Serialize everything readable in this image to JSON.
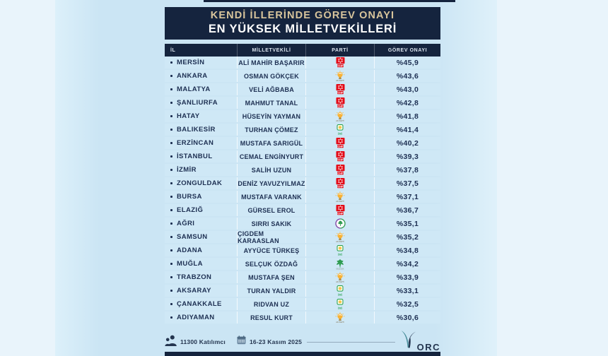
{
  "title": {
    "line1": "KENDİ İLLERİNDE GÖREV ONAYI",
    "line2": "EN YÜKSEK MİLLETVEKİLLERİ"
  },
  "colors": {
    "navy": "#15243e",
    "title_gold": "#d8c59c",
    "row_bg": "#cfe8f6",
    "page_bg": "#e9f4fb",
    "band_bg": "#cbe5f4",
    "text": "#1d2f52",
    "chp_red": "#e30a17",
    "akp_amber": "#f9b234",
    "iyi_green": "#1e9e49",
    "dem_purple": "#7b3fa0",
    "dem_green": "#2e9b4f",
    "orc_teal": "#4b8f9c"
  },
  "footer": {
    "participants": "11300 Katılımcı",
    "date_range": "16-23 Kasım 2025",
    "brand": "ORC"
  },
  "chart_data": {
    "type": "table",
    "title": "KENDİ İLLERİNDE GÖREV ONAYI EN YÜKSEK MİLLETVEKİLLERİ",
    "columns": [
      "İL",
      "MİLLETVEKİLİ",
      "PARTİ",
      "GÖREV ONAYI"
    ],
    "value_format": "percent (Turkish decimal comma)",
    "rows": [
      {
        "il": "MERSİN",
        "milletvekili": "ALİ MAHİR BAŞARIR",
        "parti": "CHP",
        "party_key": "chp",
        "onay": "%45,9",
        "onay_pct": 45.9
      },
      {
        "il": "ANKARA",
        "milletvekili": "OSMAN GÖKÇEK",
        "parti": "AK PARTİ",
        "party_key": "akp",
        "onay": "%43,6",
        "onay_pct": 43.6
      },
      {
        "il": "MALATYA",
        "milletvekili": "VELİ AĞBABA",
        "parti": "CHP",
        "party_key": "chp",
        "onay": "%43,0",
        "onay_pct": 43.0
      },
      {
        "il": "ŞANLIURFA",
        "milletvekili": "MAHMUT TANAL",
        "parti": "CHP",
        "party_key": "chp",
        "onay": "%42,8",
        "onay_pct": 42.8
      },
      {
        "il": "HATAY",
        "milletvekili": "HÜSEYİN YAYMAN",
        "parti": "AK PARTİ",
        "party_key": "akp",
        "onay": "%41,8",
        "onay_pct": 41.8
      },
      {
        "il": "BALIKESİR",
        "milletvekili": "TURHAN ÇÖMEZ",
        "parti": "İYİ",
        "party_key": "iyi",
        "onay": "%41,4",
        "onay_pct": 41.4
      },
      {
        "il": "ERZİNCAN",
        "milletvekili": "MUSTAFA SARIGÜL",
        "parti": "CHP",
        "party_key": "chp",
        "onay": "%40,2",
        "onay_pct": 40.2
      },
      {
        "il": "İSTANBUL",
        "milletvekili": "CEMAL ENGİNYURT",
        "parti": "CHP",
        "party_key": "chp",
        "onay": "%39,3",
        "onay_pct": 39.3
      },
      {
        "il": "İZMİR",
        "milletvekili": "SALİH UZUN",
        "parti": "CHP",
        "party_key": "chp",
        "onay": "%37,8",
        "onay_pct": 37.8
      },
      {
        "il": "ZONGULDAK",
        "milletvekili": "DENİZ YAVUZYILMAZ",
        "parti": "CHP",
        "party_key": "chp",
        "onay": "%37,5",
        "onay_pct": 37.5
      },
      {
        "il": "BURSA",
        "milletvekili": "MUSTAFA VARANK",
        "parti": "AK PARTİ",
        "party_key": "akp",
        "onay": "%37,1",
        "onay_pct": 37.1
      },
      {
        "il": "ELAZIĞ",
        "milletvekili": "GÜRSEL EROL",
        "parti": "CHP",
        "party_key": "chp",
        "onay": "%36,7",
        "onay_pct": 36.7
      },
      {
        "il": "AĞRI",
        "milletvekili": "SIRRI SAKIK",
        "parti": "DEM",
        "party_key": "dem",
        "onay": "%35,1",
        "onay_pct": 35.1
      },
      {
        "il": "SAMSUN",
        "milletvekili": "ÇİĞDEM KARAASLAN",
        "parti": "AK PARTİ",
        "party_key": "akp",
        "onay": "%35,2",
        "onay_pct": 35.2
      },
      {
        "il": "ADANA",
        "milletvekili": "AYYÜCE TÜRKEŞ",
        "parti": "İYİ",
        "party_key": "iyi",
        "onay": "%34,8",
        "onay_pct": 34.8
      },
      {
        "il": "MUĞLA",
        "milletvekili": "SELÇUK ÖZDAĞ",
        "parti": "GELECEK",
        "party_key": "gelecek",
        "onay": "%34,2",
        "onay_pct": 34.2
      },
      {
        "il": "TRABZON",
        "milletvekili": "MUSTAFA ŞEN",
        "parti": "AK PARTİ",
        "party_key": "akp",
        "onay": "%33,9",
        "onay_pct": 33.9
      },
      {
        "il": "AKSARAY",
        "milletvekili": "TURAN YALDIR",
        "parti": "İYİ",
        "party_key": "iyi",
        "onay": "%33,1",
        "onay_pct": 33.1
      },
      {
        "il": "ÇANAKKALE",
        "milletvekili": "RIDVAN UZ",
        "parti": "İYİ",
        "party_key": "iyi",
        "onay": "%32,5",
        "onay_pct": 32.5
      },
      {
        "il": "ADIYAMAN",
        "milletvekili": "RESUL KURT",
        "parti": "AK PARTİ",
        "party_key": "akp",
        "onay": "%30,6",
        "onay_pct": 30.6
      }
    ]
  }
}
